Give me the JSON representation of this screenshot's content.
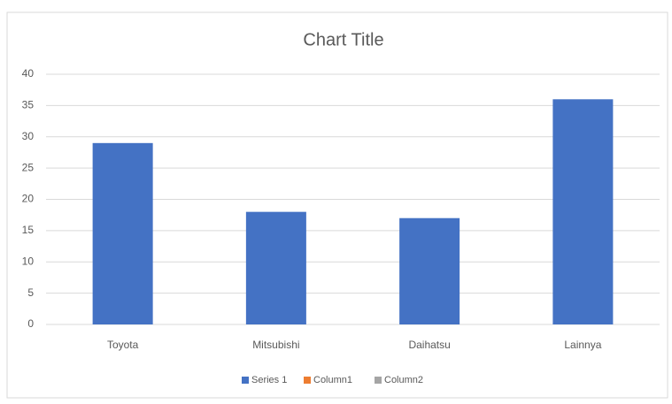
{
  "chart_data": {
    "type": "bar",
    "title": "Chart Title",
    "categories": [
      "Toyota",
      "Mitsubishi",
      "Daihatsu",
      "Lainnya"
    ],
    "series": [
      {
        "name": "Series 1",
        "color": "#4472c4",
        "values": [
          29,
          18,
          17,
          36
        ]
      },
      {
        "name": "Column1",
        "color": "#ed7d31",
        "values": [
          null,
          null,
          null,
          null
        ]
      },
      {
        "name": "Column2",
        "color": "#a5a5a5",
        "values": [
          null,
          null,
          null,
          null
        ]
      }
    ],
    "ylim": [
      0,
      40
    ],
    "yticks": [
      0,
      5,
      10,
      15,
      20,
      25,
      30,
      35,
      40
    ],
    "grid": true,
    "legend": "bottom"
  }
}
